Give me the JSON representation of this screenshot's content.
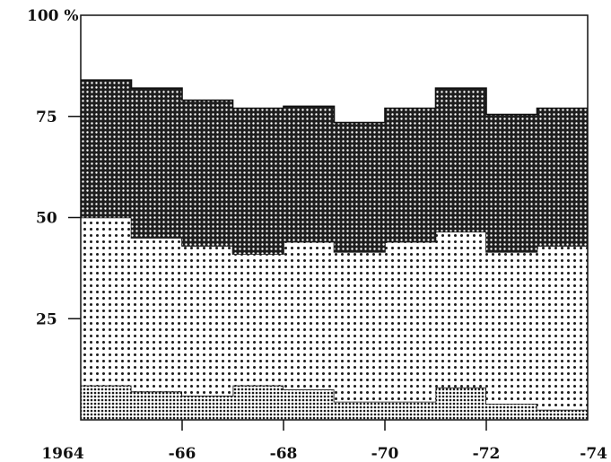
{
  "chart_data": {
    "type": "area",
    "stacked": true,
    "step": true,
    "x": [
      1964,
      1965,
      1966,
      1967,
      1968,
      1969,
      1970,
      1971,
      1972,
      1973
    ],
    "x_end": 1974,
    "y_unit_label": "100 %",
    "ylim": [
      0,
      100
    ],
    "yticks": [
      0,
      25,
      50,
      75,
      100
    ],
    "ytick_labels": [
      "",
      "25",
      "50",
      "75",
      "100 %"
    ],
    "xlim": [
      1964,
      1974
    ],
    "xticks": [
      1964,
      1966,
      1968,
      1970,
      1972,
      1974
    ],
    "xtick_labels": [
      "1964",
      "-66",
      "-68",
      "-70",
      "-72",
      "-74"
    ],
    "grid": false,
    "legend": "none",
    "series": [
      {
        "pattern": "fine-dense-dots",
        "fill": "#b9b9b9",
        "values": [
          8.5,
          7,
          6,
          8.5,
          7.5,
          4.5,
          4.5,
          8,
          4,
          2.5
        ]
      },
      {
        "pattern": "medium-dots",
        "fill": "#d2d2d2",
        "values": [
          41.5,
          38,
          37,
          32.5,
          36.5,
          37,
          39.5,
          38.5,
          37.5,
          40.5
        ]
      },
      {
        "pattern": "dense-dark-dots",
        "fill": "#3a3a3a",
        "values": [
          34,
          37,
          36,
          36,
          33.5,
          32,
          33,
          35.5,
          34,
          34
        ]
      }
    ]
  }
}
